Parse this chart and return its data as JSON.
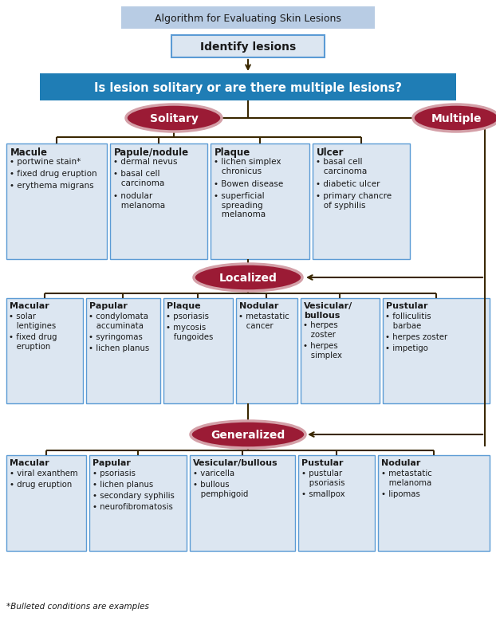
{
  "title": "Algorithm for Evaluating Skin Lesions",
  "title_bg": "#b8cce4",
  "identify_text": "Identify lesions",
  "identify_bg": "#dce6f1",
  "identify_border": "#5b9bd5",
  "question_text": "Is lesion solitary or are there multiple lesions?",
  "question_bg": "#1f7db5",
  "question_fg": "#ffffff",
  "oval_bg": "#9b1b35",
  "oval_fg": "#ffffff",
  "oval_border": "#d4a0a8",
  "box_bg": "#dce6f1",
  "box_border": "#5b9bd5",
  "text_color": "#1a1a1a",
  "arrow_color": "#3a2800",
  "solitary_label": "Solitary",
  "multiple_label": "Multiple",
  "localized_label": "Localized",
  "generalized_label": "Generalized",
  "solitary_boxes": [
    {
      "title": "Macule",
      "items": [
        "• portwine stain*",
        "• fixed drug eruption",
        "• erythema migrans"
      ]
    },
    {
      "title": "Papule/nodule",
      "items": [
        "• dermal nevus",
        "• basal cell\n   carcinoma",
        "• nodular\n   melanoma"
      ]
    },
    {
      "title": "Plaque",
      "items": [
        "• lichen simplex\n   chronicus",
        "• Bowen disease",
        "• superficial\n   spreading\n   melanoma"
      ]
    },
    {
      "title": "Ulcer",
      "items": [
        "• basal cell\n   carcinoma",
        "• diabetic ulcer",
        "• primary chancre\n   of syphilis"
      ]
    }
  ],
  "localized_boxes": [
    {
      "title": "Macular",
      "items": [
        "• solar\n   lentigines",
        "• fixed drug\n   eruption"
      ]
    },
    {
      "title": "Papular",
      "items": [
        "• condylomata\n   accuminata",
        "• syringomas",
        "• lichen planus"
      ]
    },
    {
      "title": "Plaque",
      "items": [
        "• psoriasis",
        "• mycosis\n   fungoides"
      ]
    },
    {
      "title": "Nodular",
      "items": [
        "• metastatic\n   cancer"
      ]
    },
    {
      "title": "Vesicular/\nbullous",
      "items": [
        "• herpes\n   zoster",
        "• herpes\n   simplex"
      ]
    },
    {
      "title": "Pustular",
      "items": [
        "• folliculitis\n   barbae",
        "• herpes zoster",
        "• impetigo"
      ]
    }
  ],
  "generalized_boxes": [
    {
      "title": "Macular",
      "items": [
        "• viral exanthem",
        "• drug eruption"
      ]
    },
    {
      "title": "Papular",
      "items": [
        "• psoriasis",
        "• lichen planus",
        "• secondary syphilis",
        "• neurofibromatosis"
      ]
    },
    {
      "title": "Vesicular/bullous",
      "items": [
        "• varicella",
        "• bullous\n   pemphigoid"
      ]
    },
    {
      "title": "Pustular",
      "items": [
        "• pustular\n   psoriasis",
        "• smallpox"
      ]
    },
    {
      "title": "Nodular",
      "items": [
        "• metastatic\n   melanoma",
        "• lipomas"
      ]
    }
  ],
  "footnote": "*Bulleted conditions are examples"
}
